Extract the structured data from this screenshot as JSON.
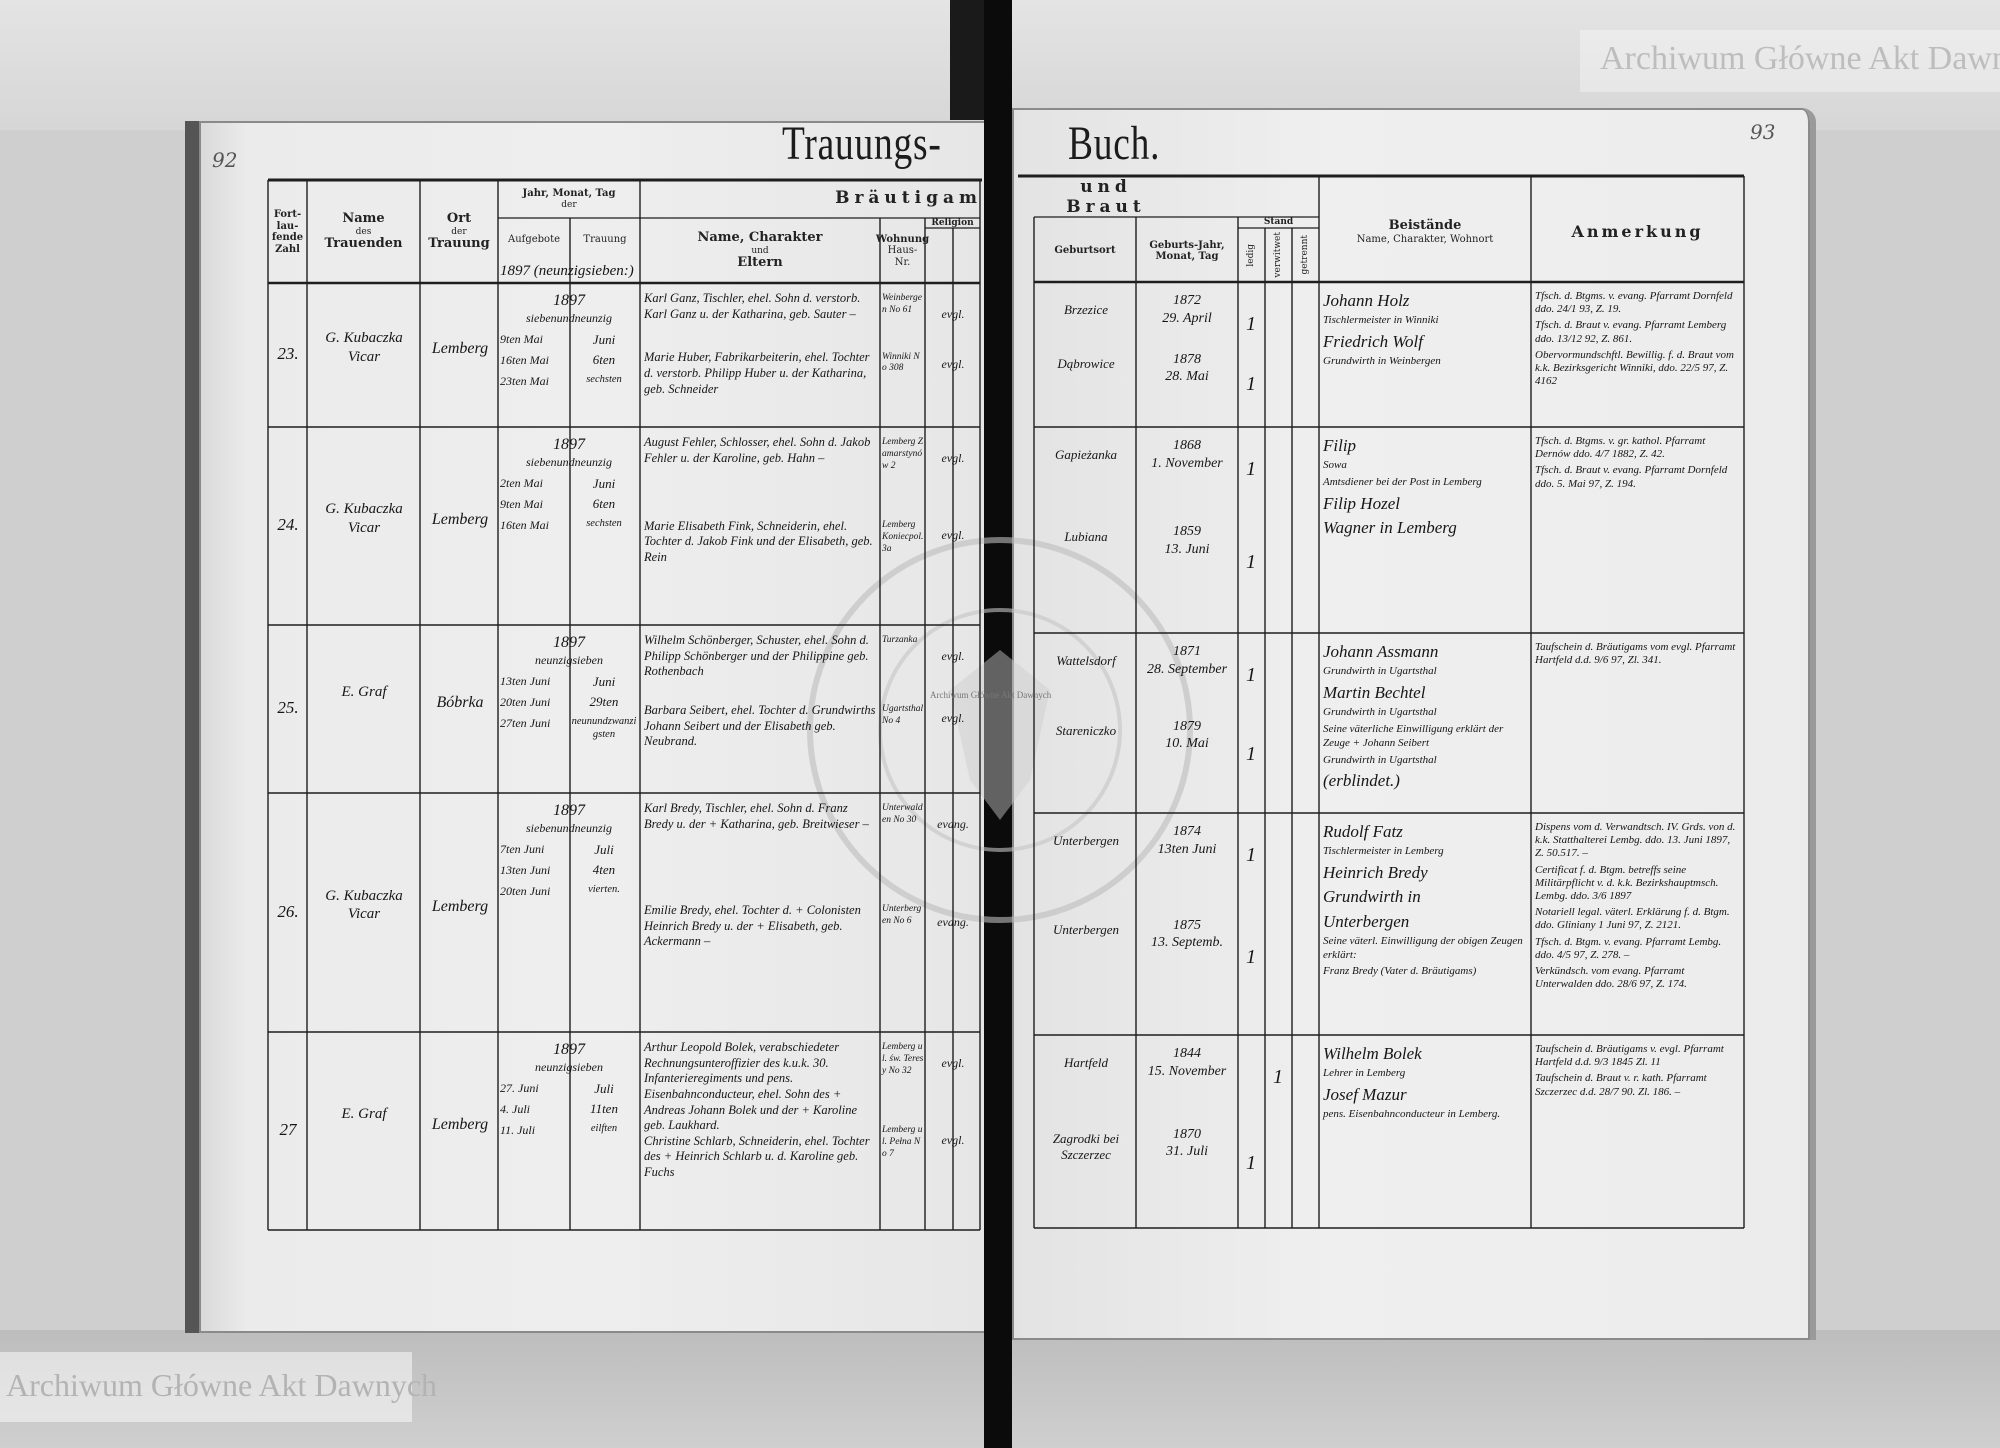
{
  "document": {
    "title_left": "Trauungs-",
    "title_right": "Buch.",
    "page_number_left": "92",
    "page_number_right": "93",
    "pre_row_note": "1897 (neunzigsieben:)"
  },
  "header": {
    "number": "Fort-lau-fende Zahl",
    "officiant": [
      "Name",
      "des",
      "Trauenden"
    ],
    "place": [
      "Ort",
      "der",
      "Trauung"
    ],
    "dates": [
      "Jahr, Monat, Tag",
      "der"
    ],
    "banns": "Aufgebote",
    "wedding": "Trauung",
    "groom_group": "Bräutigam",
    "bride_group": "und Braut",
    "name_parents": [
      "Name, Charakter",
      "und",
      "Eltern"
    ],
    "residence": [
      "Wohnung",
      "Haus-Nr."
    ],
    "religion": "Religion",
    "birthplace": "Geburtsort",
    "birthdate": [
      "Geburts-Jahr,",
      "Monat, Tag"
    ],
    "status": "Stand",
    "status_columns": [
      "ledig",
      "verwitwet",
      "getrennt"
    ],
    "witnesses": [
      "Beistände",
      "Name, Charakter, Wohnort"
    ],
    "remarks": "Anmerkung"
  },
  "rows": [
    {
      "number": "23.",
      "officiant": [
        "G. Kubaczka",
        "Vicar"
      ],
      "place": "Lemberg",
      "year": "1897",
      "year_words": "siebenundneunzig",
      "banns": [
        "9ten Mai",
        "16ten Mai",
        "23ten Mai"
      ],
      "wedding": [
        "Juni",
        "6ten",
        "sechsten"
      ],
      "groom": "Karl Ganz, Tischler, ehel. Sohn d. verstorb. Karl Ganz u. der Katharina, geb. Sauter –",
      "bride": "Marie Huber, Fabrikarbeiterin, ehel. Tochter d. verstorb. Philipp Huber u. der Katharina, geb. Schneider",
      "groom_residence": "Weinbergen No 61",
      "bride_residence": "Winniki No 308",
      "groom_religion": "evgl.",
      "bride_religion": "evgl.",
      "groom_birthplace": "Brzezice",
      "bride_birthplace": "Dąbrowice",
      "groom_birth": [
        "1872",
        "29. April"
      ],
      "bride_birth": [
        "1878",
        "28. Mai"
      ],
      "groom_status": {
        "column": "ledig",
        "mark": "1"
      },
      "bride_status": {
        "column": "ledig",
        "mark": "1"
      },
      "witnesses": [
        "Johann Holz",
        "Tischlermeister in Winniki",
        "Friedrich Wolf",
        "Grundwirth in Weinbergen"
      ],
      "remarks": [
        "Tfsch. d. Btgms. v. evang. Pfarramt Dornfeld ddo. 24/1 93, Z. 19.",
        "Tfsch. d. Braut v. evang. Pfarramt Lemberg ddo. 13/12 92, Z. 861.",
        "Obervormundschftl. Bewillig. f. d. Braut vom k.k. Bezirksgericht Winniki, ddo. 22/5 97, Z. 4162"
      ]
    },
    {
      "number": "24.",
      "officiant": [
        "G. Kubaczka",
        "Vicar"
      ],
      "place": "Lemberg",
      "year": "1897",
      "year_words": "siebenundneunzig",
      "banns": [
        "2ten Mai",
        "9ten Mai",
        "16ten Mai"
      ],
      "wedding": [
        "Juni",
        "6ten",
        "sechsten"
      ],
      "groom": "August Fehler, Schlosser, ehel. Sohn d. Jakob Fehler u. der Karoline, geb. Hahn –",
      "bride": "Marie Elisabeth Fink, Schneiderin, ehel. Tochter d. Jakob Fink und der Elisabeth, geb. Rein",
      "groom_residence": "Lemberg Zamarstynów 2",
      "bride_residence": "Lemberg Koniecpol. 3a",
      "groom_religion": "evgl.",
      "bride_religion": "evgl.",
      "groom_birthplace": "Gapieżanka",
      "bride_birthplace": "Lubiana",
      "groom_birth": [
        "1868",
        "1. November"
      ],
      "bride_birth": [
        "1859",
        "13. Juni"
      ],
      "groom_status": {
        "column": "ledig",
        "mark": "1"
      },
      "bride_status": {
        "column": "ledig",
        "mark": "1"
      },
      "witnesses": [
        "Filip",
        "Sowa",
        "Amtsdiener bei der Post in Lemberg",
        "Filip Hozel",
        "Wagner in Lemberg"
      ],
      "remarks": [
        "Tfsch. d. Btgms. v. gr. kathol. Pfarramt Dernów ddo. 4/7 1882, Z. 42.",
        "Tfsch. d. Braut v. evang. Pfarramt Dornfeld ddo. 5. Mai 97, Z. 194."
      ]
    },
    {
      "number": "25.",
      "officiant": [
        "E. Graf",
        ""
      ],
      "place": "Bóbrka",
      "year": "1897",
      "year_words": "neunzigsieben",
      "banns": [
        "13ten Juni",
        "20ten Juni",
        "27ten Juni"
      ],
      "wedding": [
        "Juni",
        "29ten",
        "neunundzwanzigsten"
      ],
      "groom": "Wilhelm Schönberger, Schuster, ehel. Sohn d. Philipp Schönberger und der Philippine geb. Rothenbach",
      "bride": "Barbara Seibert, ehel. Tochter d. Grundwirths Johann Seibert und der Elisabeth geb. Neubrand.",
      "groom_residence": "Turzanka",
      "bride_residence": "Ugartsthal No 4",
      "groom_religion": "evgl.",
      "bride_religion": "evgl.",
      "groom_birthplace": "Wattelsdorf",
      "bride_birthplace": "Stareniczko",
      "groom_birth": [
        "1871",
        "28. September"
      ],
      "bride_birth": [
        "1879",
        "10. Mai"
      ],
      "groom_status": {
        "column": "ledig",
        "mark": "1"
      },
      "bride_status": {
        "column": "ledig",
        "mark": "1"
      },
      "witnesses": [
        "Johann Assmann",
        "Grundwirth in Ugartsthal",
        "Martin Bechtel",
        "Grundwirth in Ugartsthal",
        "Seine väterliche Einwilligung erklärt der Zeuge + Johann Seibert",
        "Grundwirth in Ugartsthal",
        "(erblindet.)"
      ],
      "remarks": [
        "Taufschein d. Bräutigams vom evgl. Pfarramt Hartfeld d.d. 9/6 97, Zl. 341."
      ]
    },
    {
      "number": "26.",
      "officiant": [
        "G. Kubaczka",
        "Vicar"
      ],
      "place": "Lemberg",
      "year": "1897",
      "year_words": "siebenundneunzig",
      "banns": [
        "7ten Juni",
        "13ten Juni",
        "20ten Juni"
      ],
      "wedding": [
        "Juli",
        "4ten",
        "vierten."
      ],
      "groom": "Karl Bredy, Tischler, ehel. Sohn d. Franz Bredy u. der + Katharina, geb. Breitwieser –",
      "bride": "Emilie Bredy, ehel. Tochter d. + Colonisten Heinrich Bredy u. der + Elisabeth, geb. Ackermann –",
      "groom_residence": "Unterwalden No 30",
      "bride_residence": "Unterbergen No 6",
      "groom_religion": "evang.",
      "bride_religion": "evang.",
      "groom_birthplace": "Unterbergen",
      "bride_birthplace": "Unterbergen",
      "groom_birth": [
        "1874",
        "13ten Juni"
      ],
      "bride_birth": [
        "1875",
        "13. Septemb."
      ],
      "groom_status": {
        "column": "ledig",
        "mark": "1"
      },
      "bride_status": {
        "column": "ledig",
        "mark": "1"
      },
      "witnesses": [
        "Rudolf Fatz",
        "Tischlermeister in Lemberg",
        "Heinrich Bredy",
        "Grundwirth in",
        "Unterbergen",
        "Seine väterl. Einwilligung der obigen Zeugen erklärt:",
        "Franz Bredy (Vater d. Bräutigams)"
      ],
      "remarks": [
        "Dispens vom d. Verwandtsch. IV. Grds. von d. k.k. Statthalterei Lembg. ddo. 13. Juni 1897, Z. 50.517. –",
        "Certificat f. d. Btgm. betreffs seine Militärpflicht v. d. k.k. Bezirkshauptmsch. Lembg. ddo. 3/6 1897",
        "Notariell legal. väterl. Erklärung f. d. Btgm. ddo. Gliniany 1 Juni 97, Z. 2121.",
        "Tfsch. d. Btgm. v. evang. Pfarramt Lembg. ddo. 4/5 97, Z. 278. –",
        "Verkündsch. vom evang. Pfarramt Unterwalden ddo. 28/6 97, Z. 174."
      ]
    },
    {
      "number": "27",
      "officiant": [
        "E. Graf",
        ""
      ],
      "place": "Lemberg",
      "year": "1897",
      "year_words": "neunzigsieben",
      "banns": [
        "27. Juni",
        "4. Juli",
        "11. Juli"
      ],
      "wedding": [
        "Juli",
        "11ten",
        "eilften"
      ],
      "groom": "Arthur Leopold Bolek, verabschiedeter Rechnungsunteroffizier des k.u.k. 30. Infanterieregiments und pens. Eisenbahnconducteur, ehel. Sohn des + Andreas Johann Bolek und der + Karoline geb. Laukhard.",
      "bride": "Christine Schlarb, Schneiderin, ehel. Tochter des + Heinrich Schlarb u. d. Karoline geb. Fuchs",
      "groom_residence": "Lemberg ul. św. Teresy No 32",
      "bride_residence": "Lemberg ul. Pełna No 7",
      "groom_religion": "evgl.",
      "bride_religion": "evgl.",
      "groom_birthplace": "Hartfeld",
      "bride_birthplace": "Zagrodki bei Szczerzec",
      "groom_birth": [
        "1844",
        "15. November"
      ],
      "bride_birth": [
        "1870",
        "31. Juli"
      ],
      "groom_status": {
        "column": "verwitwet",
        "mark": "1"
      },
      "bride_status": {
        "column": "ledig",
        "mark": "1"
      },
      "witnesses": [
        "Wilhelm Bolek",
        "Lehrer in Lemberg",
        "Josef Mazur",
        "pens. Eisenbahnconducteur in Lemberg."
      ],
      "remarks": [
        "Taufschein d. Bräutigams v. evgl. Pfarramt Hartfeld d.d. 9/3 1845 Zl. 11",
        "Taufschein d. Braut v. r. kath. Pfarramt Szczerzec d.d. 28/7 90. Zl. 186. –"
      ]
    }
  ],
  "watermarks": {
    "top_right": "Archiwum Główne Akt Dawnych",
    "bottom_left": "Archiwum Główne Akt Dawnych",
    "center_small": "Archiwum Główne Akt Dawnych",
    "stamp": "ARCHIWUM GŁÓWNE AKT DAWNYCH"
  },
  "colors": {
    "ink": "#161616",
    "paper": "#ececec",
    "background": "#cfcfcf",
    "spine": "#0b0b0b"
  }
}
